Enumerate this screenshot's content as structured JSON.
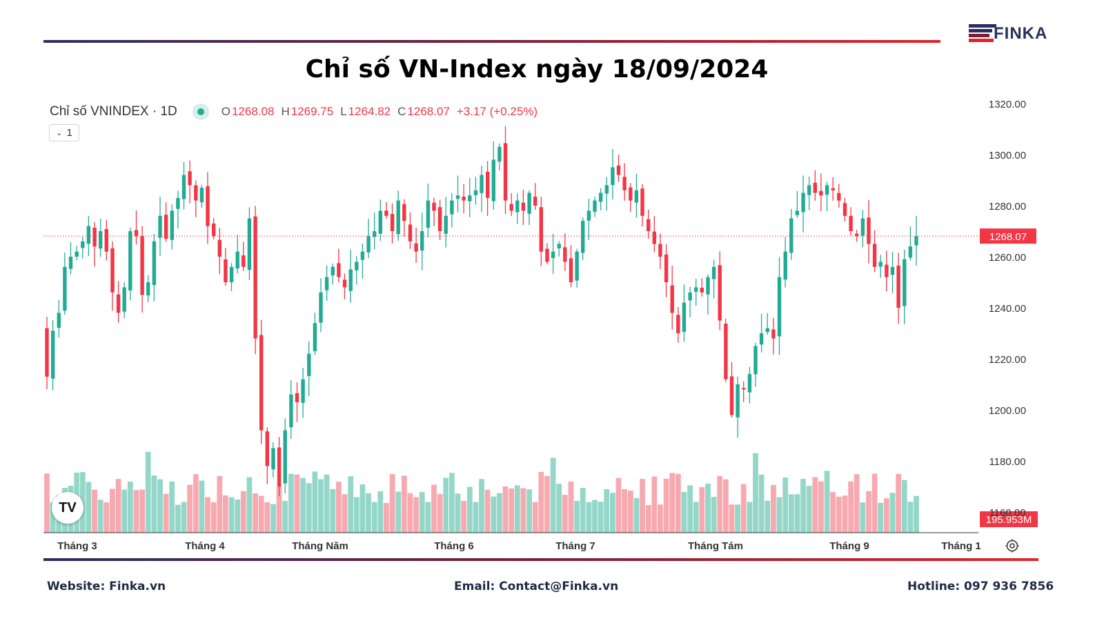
{
  "brand": {
    "logo_text": "FINKA"
  },
  "title": "Chỉ số VN-Index ngày 18/09/2024",
  "legend": {
    "symbol": "Chỉ số VNINDEX · 1D",
    "o_label": "O",
    "o_value": "1268.08",
    "h_label": "H",
    "h_value": "1269.75",
    "l_label": "L",
    "l_value": "1264.82",
    "c_label": "C",
    "c_value": "1268.07",
    "change": "+3.17 (+0.25%)",
    "collapse_label": "1"
  },
  "tv_badge": "TV",
  "footer": {
    "website": "Website: Finka.vn",
    "email": "Email: Contact@Finka.vn",
    "hotline": "Hotline: 097 936 7856"
  },
  "colors": {
    "up": "#22ab94",
    "down": "#f23645",
    "vol_up": "#94d7c8",
    "vol_down": "#f7a9b0",
    "accent": "#e0242a",
    "navy": "#2b2e5e"
  },
  "chart_data": {
    "type": "candlestick",
    "y_ticks": [
      "1320.00",
      "1300.00",
      "1280.00",
      "1260.00",
      "1240.00",
      "1220.00",
      "1200.00",
      "1180.00",
      "1160.00"
    ],
    "ylim": [
      1160,
      1324
    ],
    "x_labels": [
      "Tháng 3",
      "Tháng 4",
      "Tháng Năm",
      "Tháng 6",
      "Tháng 7",
      "Tháng Tám",
      "Tháng 9",
      "Tháng 1"
    ],
    "last_price": 1268.07,
    "last_price_label": "1268.07",
    "last_volume_label": "195.953M",
    "close": [
      1213,
      1231,
      1238,
      1256,
      1260,
      1262,
      1266,
      1272,
      1264,
      1270,
      1262,
      1246,
      1238,
      1248,
      1270,
      1268,
      1245,
      1250,
      1266,
      1276,
      1267,
      1278,
      1283,
      1292,
      1288,
      1282,
      1287,
      1272,
      1268,
      1260,
      1250,
      1256,
      1262,
      1256,
      1275,
      1228,
      1192,
      1178,
      1185,
      1170,
      1192,
      1206,
      1203,
      1212,
      1222,
      1234,
      1246,
      1252,
      1256,
      1252,
      1248,
      1255,
      1258,
      1262,
      1268,
      1270,
      1278,
      1276,
      1270,
      1282,
      1274,
      1266,
      1262,
      1270,
      1282,
      1278,
      1270,
      1276,
      1282,
      1284,
      1282,
      1284,
      1286,
      1292,
      1283,
      1298,
      1303,
      1282,
      1278,
      1282,
      1278,
      1285,
      1280,
      1262,
      1258,
      1262,
      1265,
      1258,
      1250,
      1262,
      1274,
      1278,
      1282,
      1285,
      1288,
      1295,
      1292,
      1286,
      1282,
      1286,
      1276,
      1270,
      1265,
      1260,
      1250,
      1238,
      1230,
      1242,
      1246,
      1248,
      1246,
      1252,
      1256,
      1235,
      1212,
      1198,
      1210,
      1208,
      1214,
      1225,
      1230,
      1232,
      1228,
      1252,
      1262,
      1275,
      1278,
      1285,
      1288,
      1285,
      1284,
      1288,
      1286,
      1282,
      1276,
      1270,
      1268,
      1275,
      1265,
      1256,
      1258,
      1252,
      1256,
      1240,
      1259,
      1264,
      1268.07
    ],
    "volume_note": "volume bars shown beneath price, last bar 195.953M"
  }
}
